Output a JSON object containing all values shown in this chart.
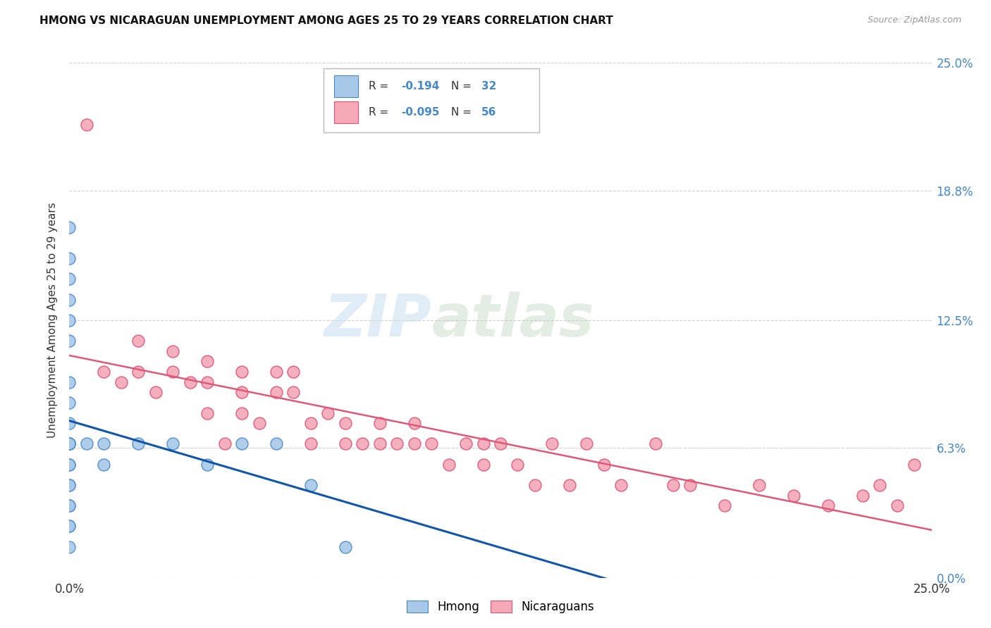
{
  "title": "HMONG VS NICARAGUAN UNEMPLOYMENT AMONG AGES 25 TO 29 YEARS CORRELATION CHART",
  "source": "Source: ZipAtlas.com",
  "ylabel": "Unemployment Among Ages 25 to 29 years",
  "xlim": [
    0.0,
    0.25
  ],
  "ylim": [
    0.0,
    0.25
  ],
  "ytick_values": [
    0.0,
    0.063,
    0.125,
    0.188,
    0.25
  ],
  "ytick_labels": [
    "0.0%",
    "6.3%",
    "12.5%",
    "18.8%",
    "25.0%"
  ],
  "hmong_color": "#a8c8e8",
  "nicaraguan_color": "#f4a8b8",
  "hmong_edge_color": "#4488cc",
  "nicaraguan_edge_color": "#e05070",
  "hmong_line_color": "#1155aa",
  "nicaraguan_line_color": "#e05878",
  "background_color": "#ffffff",
  "grid_color": "#cccccc",
  "watermark_zip": "ZIP",
  "watermark_atlas": "atlas",
  "hmong_x": [
    0.0,
    0.0,
    0.0,
    0.0,
    0.0,
    0.0,
    0.0,
    0.0,
    0.0,
    0.0,
    0.0,
    0.0,
    0.0,
    0.0,
    0.0,
    0.0,
    0.0,
    0.0,
    0.0,
    0.0,
    0.0,
    0.0,
    0.005,
    0.01,
    0.01,
    0.02,
    0.03,
    0.04,
    0.05,
    0.06,
    0.07,
    0.08
  ],
  "hmong_y": [
    0.17,
    0.155,
    0.145,
    0.135,
    0.125,
    0.115,
    0.095,
    0.085,
    0.075,
    0.065,
    0.065,
    0.055,
    0.045,
    0.035,
    0.025,
    0.015,
    0.065,
    0.065,
    0.055,
    0.045,
    0.035,
    0.025,
    0.065,
    0.065,
    0.055,
    0.065,
    0.065,
    0.055,
    0.065,
    0.065,
    0.045,
    0.015
  ],
  "nicaraguan_x": [
    0.005,
    0.01,
    0.015,
    0.02,
    0.02,
    0.025,
    0.03,
    0.03,
    0.035,
    0.04,
    0.04,
    0.04,
    0.045,
    0.05,
    0.05,
    0.05,
    0.055,
    0.06,
    0.06,
    0.065,
    0.065,
    0.07,
    0.07,
    0.075,
    0.08,
    0.08,
    0.085,
    0.09,
    0.09,
    0.095,
    0.1,
    0.1,
    0.105,
    0.11,
    0.115,
    0.12,
    0.12,
    0.125,
    0.13,
    0.135,
    0.14,
    0.145,
    0.15,
    0.155,
    0.16,
    0.17,
    0.175,
    0.18,
    0.19,
    0.2,
    0.21,
    0.22,
    0.23,
    0.235,
    0.24,
    0.245
  ],
  "nicaraguan_y": [
    0.22,
    0.1,
    0.095,
    0.115,
    0.1,
    0.09,
    0.11,
    0.1,
    0.095,
    0.105,
    0.095,
    0.08,
    0.065,
    0.1,
    0.09,
    0.08,
    0.075,
    0.1,
    0.09,
    0.1,
    0.09,
    0.065,
    0.075,
    0.08,
    0.075,
    0.065,
    0.065,
    0.075,
    0.065,
    0.065,
    0.075,
    0.065,
    0.065,
    0.055,
    0.065,
    0.065,
    0.055,
    0.065,
    0.055,
    0.045,
    0.065,
    0.045,
    0.065,
    0.055,
    0.045,
    0.065,
    0.045,
    0.045,
    0.035,
    0.045,
    0.04,
    0.035,
    0.04,
    0.045,
    0.035,
    0.055
  ]
}
